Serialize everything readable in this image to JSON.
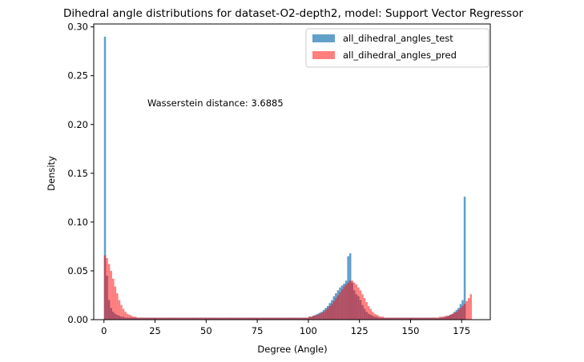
{
  "chart_data": {
    "type": "histogram",
    "title": "Dihedral angle distributions for dataset-O2-depth2, model: Support Vector Regressor",
    "xlabel": "Degree (Angle)",
    "ylabel": "Density",
    "xlim": [
      -5,
      189
    ],
    "ylim": [
      0,
      0.303
    ],
    "xticks": [
      0,
      25,
      50,
      75,
      100,
      125,
      150,
      175
    ],
    "yticks": [
      0.0,
      0.05,
      0.1,
      0.15,
      0.2,
      0.25,
      0.3
    ],
    "xtick_labels": [
      "0",
      "25",
      "50",
      "75",
      "100",
      "125",
      "150",
      "175"
    ],
    "ytick_labels": [
      "0.00",
      "0.05",
      "0.10",
      "0.15",
      "0.20",
      "0.25",
      "0.30"
    ],
    "bin_width": 1,
    "bin_start": 0,
    "annotation": "Wasserstein distance: 3.6885",
    "legend_position": "top-right",
    "grid": false,
    "series": [
      {
        "name": "all_dihedral_angles_test",
        "color": "#1f77b4",
        "alpha": 0.7,
        "values": [
          0.29,
          0.045,
          0.02,
          0.012,
          0.008,
          0.006,
          0.005,
          0.004,
          0.003,
          0.003,
          0.002,
          0.002,
          0.002,
          0.002,
          0.002,
          0.002,
          0.002,
          0.002,
          0.002,
          0.002,
          0.002,
          0.002,
          0.002,
          0.002,
          0.002,
          0.002,
          0.002,
          0.002,
          0.002,
          0.002,
          0.002,
          0.002,
          0.002,
          0.002,
          0.002,
          0.002,
          0.002,
          0.002,
          0.002,
          0.002,
          0.002,
          0.002,
          0.002,
          0.002,
          0.002,
          0.002,
          0.002,
          0.002,
          0.002,
          0.002,
          0.002,
          0.002,
          0.002,
          0.002,
          0.002,
          0.002,
          0.002,
          0.002,
          0.002,
          0.002,
          0.002,
          0.002,
          0.002,
          0.002,
          0.002,
          0.002,
          0.002,
          0.002,
          0.002,
          0.002,
          0.002,
          0.002,
          0.002,
          0.002,
          0.002,
          0.002,
          0.002,
          0.002,
          0.002,
          0.002,
          0.002,
          0.002,
          0.002,
          0.002,
          0.002,
          0.002,
          0.002,
          0.002,
          0.002,
          0.002,
          0.002,
          0.002,
          0.002,
          0.002,
          0.002,
          0.002,
          0.002,
          0.002,
          0.002,
          0.002,
          0.003,
          0.003,
          0.004,
          0.005,
          0.006,
          0.007,
          0.008,
          0.01,
          0.012,
          0.014,
          0.017,
          0.02,
          0.024,
          0.027,
          0.03,
          0.033,
          0.035,
          0.037,
          0.04,
          0.065,
          0.068,
          0.038,
          0.03,
          0.026,
          0.024,
          0.02,
          0.015,
          0.011,
          0.008,
          0.006,
          0.005,
          0.004,
          0.003,
          0.003,
          0.002,
          0.002,
          0.002,
          0.002,
          0.002,
          0.002,
          0.002,
          0.002,
          0.002,
          0.002,
          0.002,
          0.002,
          0.002,
          0.002,
          0.002,
          0.002,
          0.002,
          0.002,
          0.002,
          0.002,
          0.002,
          0.002,
          0.002,
          0.002,
          0.002,
          0.002,
          0.002,
          0.002,
          0.002,
          0.002,
          0.002,
          0.002,
          0.003,
          0.003,
          0.004,
          0.005,
          0.006,
          0.008,
          0.01,
          0.012,
          0.016,
          0.02,
          0.126
        ]
      },
      {
        "name": "all_dihedral_angles_pred",
        "color": "#ff0000",
        "alpha": 0.5,
        "values": [
          0.066,
          0.063,
          0.057,
          0.05,
          0.042,
          0.034,
          0.027,
          0.02,
          0.015,
          0.011,
          0.008,
          0.006,
          0.005,
          0.004,
          0.003,
          0.003,
          0.002,
          0.002,
          0.002,
          0.002,
          0.002,
          0.002,
          0.002,
          0.002,
          0.002,
          0.002,
          0.002,
          0.002,
          0.002,
          0.002,
          0.002,
          0.002,
          0.002,
          0.002,
          0.002,
          0.002,
          0.002,
          0.002,
          0.002,
          0.002,
          0.002,
          0.002,
          0.002,
          0.002,
          0.002,
          0.002,
          0.002,
          0.002,
          0.002,
          0.002,
          0.002,
          0.002,
          0.002,
          0.002,
          0.002,
          0.002,
          0.002,
          0.002,
          0.002,
          0.002,
          0.002,
          0.002,
          0.002,
          0.002,
          0.002,
          0.002,
          0.002,
          0.002,
          0.002,
          0.002,
          0.002,
          0.002,
          0.002,
          0.002,
          0.002,
          0.002,
          0.002,
          0.002,
          0.002,
          0.002,
          0.002,
          0.002,
          0.002,
          0.002,
          0.002,
          0.002,
          0.002,
          0.002,
          0.002,
          0.002,
          0.002,
          0.002,
          0.002,
          0.002,
          0.002,
          0.002,
          0.002,
          0.002,
          0.002,
          0.002,
          0.003,
          0.003,
          0.004,
          0.004,
          0.005,
          0.006,
          0.007,
          0.008,
          0.01,
          0.012,
          0.014,
          0.016,
          0.019,
          0.022,
          0.025,
          0.028,
          0.031,
          0.034,
          0.036,
          0.038,
          0.04,
          0.04,
          0.038,
          0.036,
          0.033,
          0.03,
          0.026,
          0.022,
          0.018,
          0.014,
          0.011,
          0.008,
          0.006,
          0.005,
          0.004,
          0.003,
          0.003,
          0.002,
          0.002,
          0.002,
          0.002,
          0.002,
          0.002,
          0.002,
          0.002,
          0.002,
          0.002,
          0.002,
          0.002,
          0.002,
          0.002,
          0.002,
          0.002,
          0.002,
          0.002,
          0.002,
          0.002,
          0.002,
          0.002,
          0.002,
          0.002,
          0.002,
          0.002,
          0.002,
          0.003,
          0.003,
          0.003,
          0.004,
          0.004,
          0.005,
          0.006,
          0.007,
          0.008,
          0.01,
          0.012,
          0.014,
          0.016,
          0.019,
          0.022,
          0.026
        ]
      }
    ]
  }
}
